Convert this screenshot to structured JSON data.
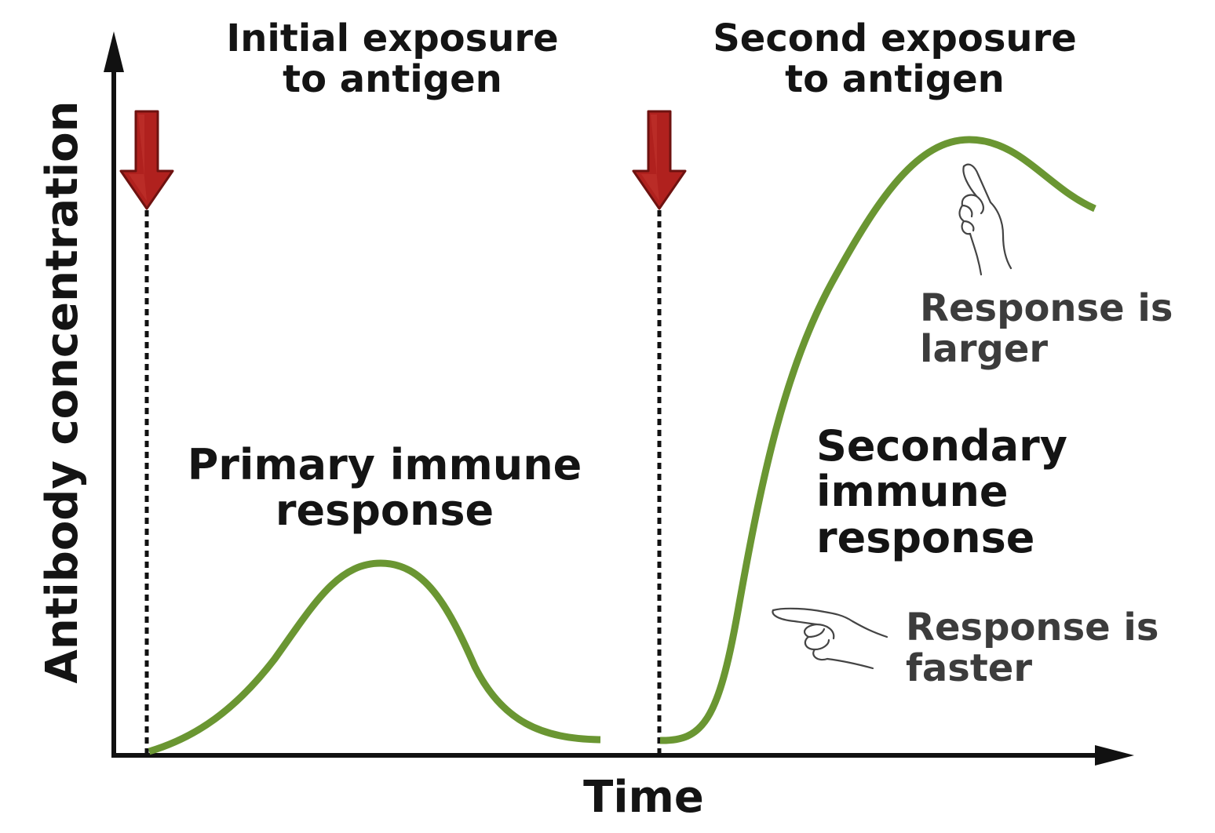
{
  "labels": {
    "initial_exposure": "Initial exposure\nto antigen",
    "second_exposure": "Second exposure\nto antigen",
    "primary_response": "Primary immune\nresponse",
    "secondary_response": "Secondary\nimmune\nresponse",
    "response_larger": "Response is\nlarger",
    "response_faster": "Response is\nfaster",
    "x_axis": "Time",
    "y_axis": "Antibody concentration"
  },
  "colors": {
    "axis": "#111111",
    "curve": "#6a9632",
    "arrow_fill": "#b0211e",
    "arrow_stroke": "#6e1210",
    "dotted_line": "#111111",
    "hand": "#444444"
  },
  "icons": {
    "exposure_marker": "down-arrow-icon",
    "larger_pointer": "pointing-hand-up-icon",
    "faster_pointer": "pointing-hand-left-icon"
  }
}
